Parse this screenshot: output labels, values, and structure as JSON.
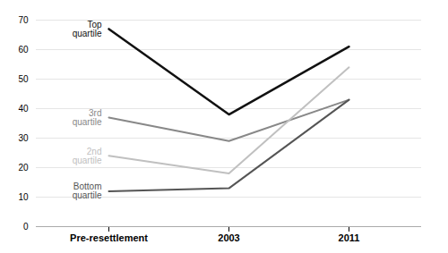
{
  "chart_data": {
    "type": "line",
    "categories": [
      "Pre-resettlement",
      "2003",
      "2011"
    ],
    "series": [
      {
        "name": "Top\nquartile",
        "color": "#111111",
        "values": [
          67,
          38,
          61
        ]
      },
      {
        "name": "3rd\nquartile",
        "color": "#888888",
        "values": [
          37,
          29,
          43
        ]
      },
      {
        "name": "2nd\nquartile",
        "color": "#c0c0c0",
        "values": [
          24,
          18,
          54
        ]
      },
      {
        "name": "Bottom\nquartile",
        "color": "#555555",
        "values": [
          12,
          13,
          43
        ]
      }
    ],
    "ylim": [
      0,
      70
    ],
    "yticks": [
      0,
      10,
      20,
      30,
      40,
      50,
      60,
      70
    ],
    "grid": true
  }
}
